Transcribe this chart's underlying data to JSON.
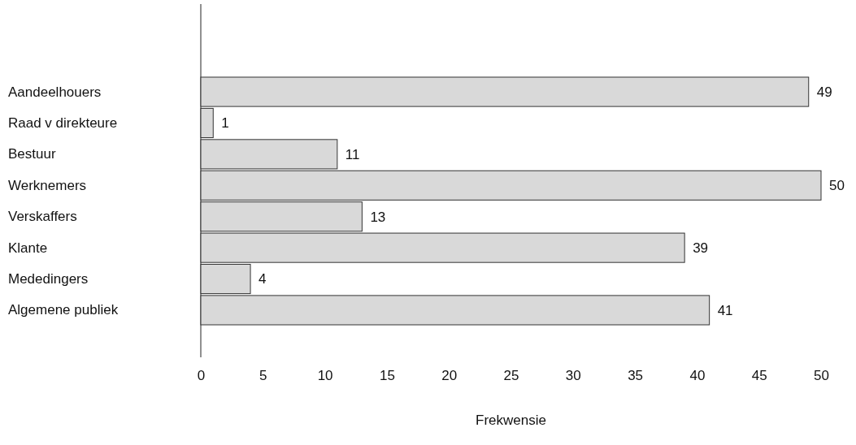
{
  "chart_data": {
    "type": "bar",
    "orientation": "horizontal",
    "xlabel": "Frekwensie",
    "categories": [
      "Aandeelhouers",
      "Raad v direkteure",
      "Bestuur",
      "Werknemers",
      "Verskaffers",
      "Klante",
      "Mededingers",
      "Algemene publiek"
    ],
    "values": [
      49,
      1,
      11,
      50,
      13,
      39,
      4,
      41
    ],
    "color": "#d9d9d9",
    "xlim": [
      0,
      50
    ],
    "xticks": [
      0,
      5,
      10,
      15,
      20,
      25,
      30,
      35,
      40,
      45,
      50
    ],
    "data_labels": true
  }
}
